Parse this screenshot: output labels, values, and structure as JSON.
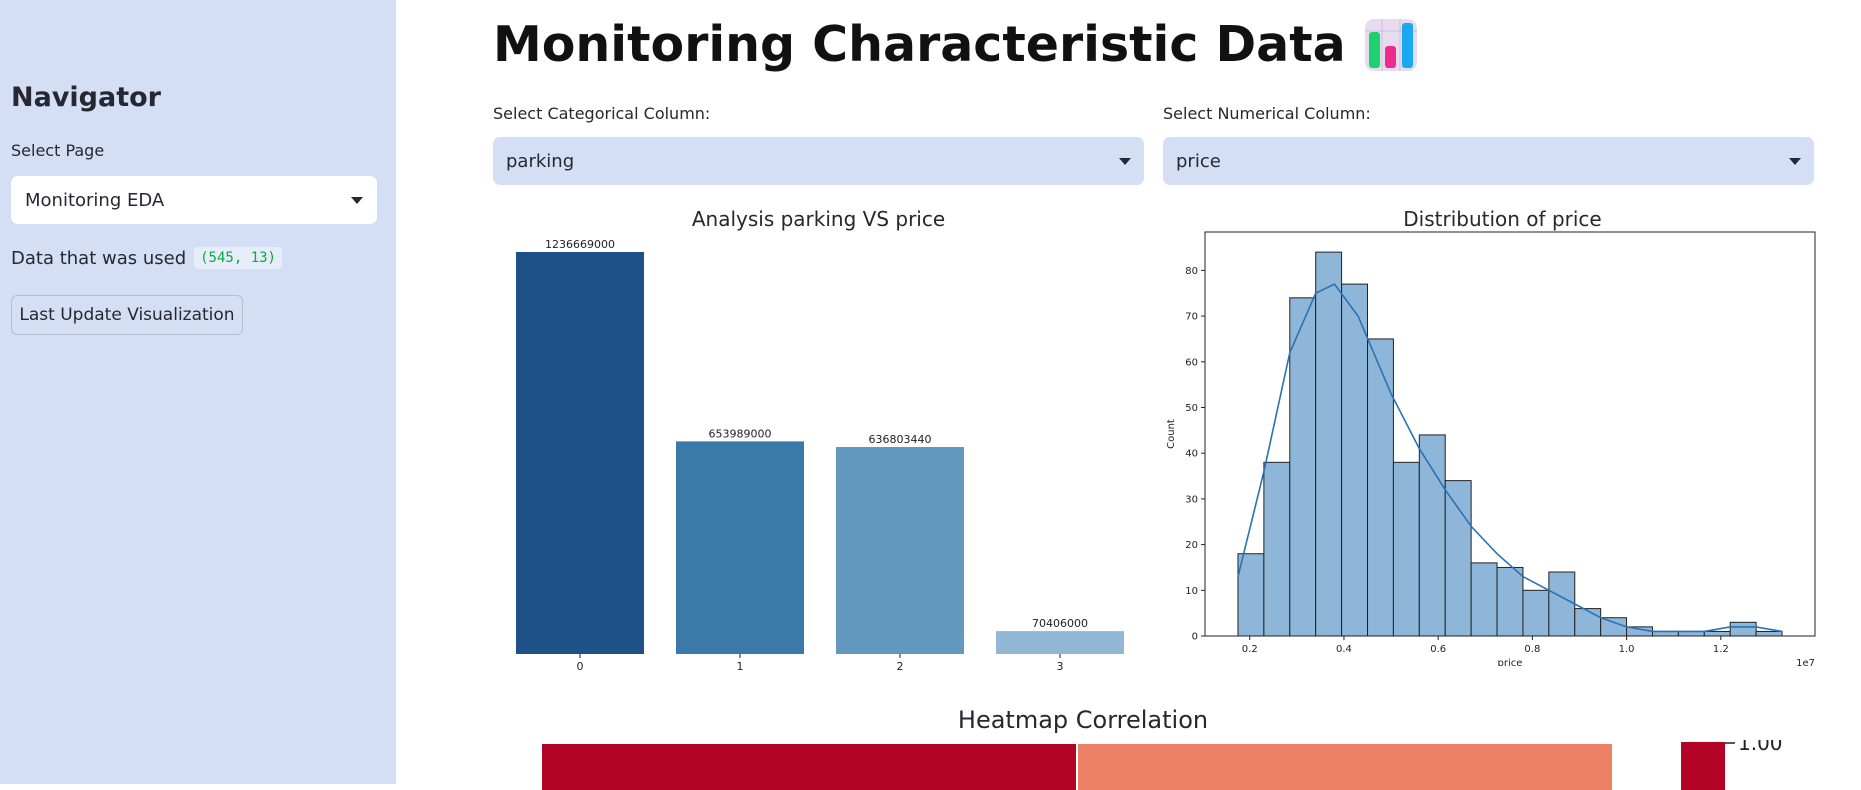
{
  "sidebar": {
    "title": "Navigator",
    "select_label": "Select Page",
    "selected_page": "Monitoring EDA",
    "data_text": "Data that was used",
    "data_shape": "(545, 13)",
    "button_label": "Last Update Visualization"
  },
  "main": {
    "title": "Monitoring Characteristic Data",
    "title_icon": "bar-chart-icon",
    "categorical_label": "Select Categorical Column:",
    "categorical_value": "parking",
    "numerical_label": "Select Numerical Column:",
    "numerical_value": "price",
    "heatmap_title": "Heatmap Correlation",
    "heatmap_colorbar_label": "1.00"
  },
  "colors": {
    "sidebar_bg": "#d4dff6",
    "select_bg": "#d4dff6",
    "code_text": "#09ab3b",
    "heat_high": "#b40426",
    "heat_mid": "#ec8165"
  },
  "chart_data": [
    {
      "type": "bar",
      "title": "Analysis parking VS price",
      "categories": [
        "0",
        "1",
        "2",
        "3"
      ],
      "values": [
        1236669000,
        653989000,
        636803440,
        70406000
      ],
      "data_labels": [
        "1236669000",
        "653989000",
        "636803440",
        "70406000"
      ],
      "colors": [
        "#1f5189",
        "#3b79a9",
        "#6399be",
        "#91b9d6"
      ]
    },
    {
      "type": "bar",
      "title": "Distribution of price",
      "xlabel": "price",
      "ylabel": "Count",
      "x_multiplier": "1e7",
      "bin_edges": [
        1750000,
        2300000,
        2850000,
        3400000,
        3950000,
        4500000,
        5050000,
        5600000,
        6150000,
        6700000,
        7250000,
        7800000,
        8350000,
        8900000,
        9450000,
        10000000,
        10550000,
        11100000,
        11650000,
        12200000,
        12750000,
        13300000
      ],
      "counts": [
        18,
        38,
        74,
        84,
        77,
        65,
        38,
        44,
        34,
        16,
        15,
        10,
        14,
        6,
        4,
        2,
        1,
        1,
        1,
        3,
        1
      ],
      "kde": [
        [
          1750000,
          13
        ],
        [
          2300000,
          36
        ],
        [
          2850000,
          62
        ],
        [
          3400000,
          75
        ],
        [
          3800000,
          77
        ],
        [
          4300000,
          70
        ],
        [
          5000000,
          53
        ],
        [
          5600000,
          41
        ],
        [
          6150000,
          32
        ],
        [
          6700000,
          24
        ],
        [
          7250000,
          18
        ],
        [
          7800000,
          13
        ],
        [
          8350000,
          10
        ],
        [
          8900000,
          7
        ],
        [
          9450000,
          4
        ],
        [
          10000000,
          2
        ],
        [
          10550000,
          1
        ],
        [
          11100000,
          1
        ],
        [
          11650000,
          1
        ],
        [
          12200000,
          2
        ],
        [
          12750000,
          2
        ],
        [
          13300000,
          1
        ]
      ],
      "xticks": [
        0.2,
        0.4,
        0.6,
        0.8,
        1.0,
        1.2
      ],
      "yticks": [
        0,
        10,
        20,
        30,
        40,
        50,
        60,
        70,
        80
      ],
      "ylim": [
        0,
        84
      ]
    }
  ]
}
